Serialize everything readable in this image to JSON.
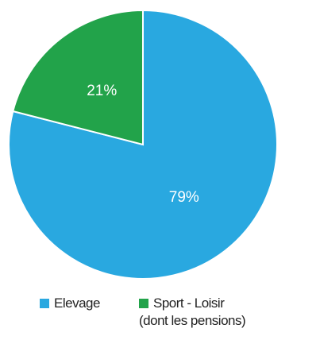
{
  "chart_data": {
    "type": "pie",
    "categories": [
      "Elevage",
      "Sport - Loisir\n(dont les pensions)"
    ],
    "values": [
      79,
      21
    ],
    "value_labels": [
      "79%",
      "21%"
    ],
    "colors": [
      "#29a8e0",
      "#22a34a"
    ],
    "legend": "bottom"
  }
}
